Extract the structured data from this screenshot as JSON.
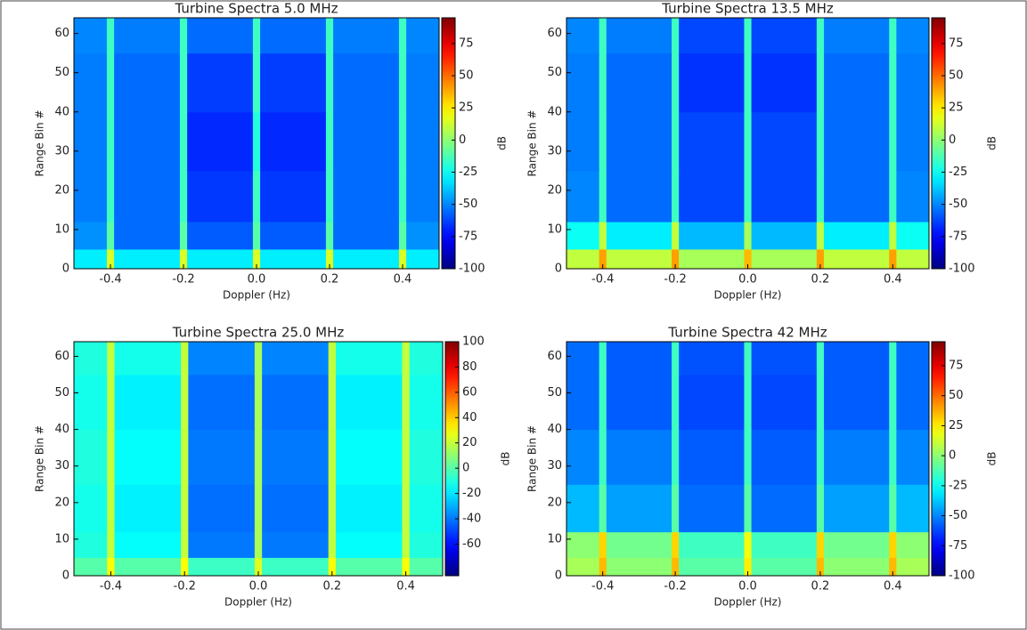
{
  "chart_data": [
    {
      "type": "heatmap",
      "title": "Turbine Spectra 5.0 MHz",
      "xlabel": "Doppler (Hz)",
      "ylabel": "Range Bin #",
      "colorbar_label": "dB",
      "colormap": "jet",
      "xlim": [
        -0.5,
        0.5
      ],
      "ylim": [
        0,
        64
      ],
      "xticks": [
        -0.4,
        -0.2,
        {
          "value": 0,
          "label": "0.0"
        },
        0.2,
        0.4
      ],
      "yticks": [
        0,
        10,
        20,
        30,
        40,
        50,
        60
      ],
      "zlim": [
        -100,
        95
      ],
      "zticks": [
        -100,
        -75,
        -50,
        -25,
        0,
        25,
        50,
        75
      ],
      "x_edges": [
        -0.5,
        -0.41,
        -0.39,
        -0.21,
        -0.19,
        -0.01,
        0.01,
        0.19,
        0.21,
        0.39,
        0.41,
        0.5
      ],
      "y_edges": [
        0,
        5,
        12,
        25,
        40,
        55,
        64
      ],
      "z": [
        [
          -30,
          15,
          -30,
          15,
          -30,
          15,
          -30,
          15,
          -30,
          15,
          -30
        ],
        [
          -48,
          -10,
          -55,
          -10,
          -58,
          -10,
          -58,
          -10,
          -55,
          -10,
          -48
        ],
        [
          -52,
          -15,
          -55,
          -15,
          -65,
          -15,
          -65,
          -15,
          -55,
          -15,
          -52
        ],
        [
          -52,
          -15,
          -55,
          -15,
          -68,
          -20,
          -68,
          -15,
          -55,
          -15,
          -52
        ],
        [
          -52,
          -15,
          -55,
          -15,
          -64,
          -15,
          -64,
          -15,
          -55,
          -15,
          -52
        ],
        [
          -50,
          -15,
          -52,
          -15,
          -55,
          -15,
          -55,
          -15,
          -52,
          -15,
          -50
        ]
      ]
    },
    {
      "type": "heatmap",
      "title": "Turbine Spectra 13.5 MHz",
      "xlabel": "Doppler (Hz)",
      "ylabel": "Range Bin #",
      "colorbar_label": "dB",
      "colormap": "jet",
      "xlim": [
        -0.5,
        0.5
      ],
      "ylim": [
        0,
        64
      ],
      "xticks": [
        -0.4,
        -0.2,
        {
          "value": 0,
          "label": "0.0"
        },
        0.2,
        0.4
      ],
      "yticks": [
        0,
        10,
        20,
        30,
        40,
        50,
        60
      ],
      "zlim": [
        -100,
        95
      ],
      "zticks": [
        -100,
        -75,
        -50,
        -25,
        0,
        25,
        50,
        75
      ],
      "x_edges": [
        -0.5,
        -0.41,
        -0.39,
        -0.21,
        -0.19,
        -0.01,
        0.01,
        0.19,
        0.21,
        0.39,
        0.41,
        0.5
      ],
      "y_edges": [
        0,
        5,
        12,
        25,
        40,
        55,
        64
      ],
      "z": [
        [
          10,
          40,
          10,
          40,
          5,
          35,
          5,
          40,
          10,
          40,
          10
        ],
        [
          -25,
          10,
          -30,
          10,
          -40,
          5,
          -40,
          10,
          -30,
          10,
          -25
        ],
        [
          -50,
          -15,
          -55,
          -15,
          -62,
          -15,
          -62,
          -15,
          -55,
          -15,
          -50
        ],
        [
          -52,
          -15,
          -55,
          -15,
          -62,
          -15,
          -62,
          -15,
          -55,
          -15,
          -52
        ],
        [
          -52,
          -15,
          -55,
          -15,
          -66,
          -15,
          -66,
          -15,
          -55,
          -15,
          -52
        ],
        [
          -50,
          -15,
          -52,
          -15,
          -62,
          -15,
          -62,
          -15,
          -52,
          -15,
          -50
        ]
      ]
    },
    {
      "type": "heatmap",
      "title": "Turbine Spectra 25.0 MHz",
      "xlabel": "Doppler (Hz)",
      "ylabel": "Range Bin #",
      "colorbar_label": "dB",
      "colormap": "jet",
      "xlim": [
        -0.5,
        0.5
      ],
      "ylim": [
        0,
        64
      ],
      "xticks": [
        -0.4,
        -0.2,
        {
          "value": 0,
          "label": "0.0"
        },
        0.2,
        0.4
      ],
      "yticks": [
        0,
        10,
        20,
        30,
        40,
        50,
        60
      ],
      "zlim": [
        -85,
        100
      ],
      "zticks": [
        -60,
        -40,
        -20,
        0,
        20,
        40,
        60,
        80,
        100
      ],
      "x_edges": [
        -0.5,
        -0.41,
        -0.39,
        -0.21,
        -0.19,
        -0.01,
        0.01,
        0.19,
        0.21,
        0.39,
        0.41,
        0.5
      ],
      "y_edges": [
        0,
        5,
        12,
        25,
        40,
        55,
        64
      ],
      "z": [
        [
          0,
          30,
          0,
          30,
          -5,
          25,
          -5,
          30,
          0,
          30,
          0
        ],
        [
          -10,
          20,
          -15,
          20,
          -40,
          15,
          -40,
          20,
          -15,
          20,
          -10
        ],
        [
          -12,
          20,
          -18,
          20,
          -42,
          15,
          -42,
          20,
          -18,
          20,
          -12
        ],
        [
          -10,
          20,
          -15,
          20,
          -40,
          15,
          -40,
          20,
          -15,
          20,
          -10
        ],
        [
          -12,
          20,
          -18,
          20,
          -42,
          15,
          -42,
          20,
          -18,
          20,
          -12
        ],
        [
          -10,
          20,
          -12,
          20,
          -38,
          15,
          -38,
          20,
          -12,
          20,
          -10
        ]
      ]
    },
    {
      "type": "heatmap",
      "title": "Turbine Spectra 42 MHz",
      "xlabel": "Doppler (Hz)",
      "ylabel": "Range Bin #",
      "colorbar_label": "dB",
      "colormap": "jet",
      "xlim": [
        -0.5,
        0.5
      ],
      "ylim": [
        0,
        64
      ],
      "xticks": [
        -0.4,
        -0.2,
        {
          "value": 0,
          "label": "0.0"
        },
        0.2,
        0.4
      ],
      "yticks": [
        0,
        10,
        20,
        30,
        40,
        50,
        60
      ],
      "zlim": [
        -100,
        95
      ],
      "zticks": [
        -100,
        -75,
        -50,
        -25,
        0,
        25,
        50,
        75
      ],
      "x_edges": [
        -0.5,
        -0.41,
        -0.39,
        -0.21,
        -0.19,
        -0.01,
        0.01,
        0.19,
        0.21,
        0.39,
        0.41,
        0.5
      ],
      "y_edges": [
        0,
        5,
        12,
        25,
        40,
        55,
        64
      ],
      "z": [
        [
          5,
          35,
          0,
          35,
          -10,
          25,
          -10,
          35,
          0,
          35,
          5
        ],
        [
          0,
          30,
          -5,
          30,
          -15,
          20,
          -15,
          30,
          -5,
          30,
          0
        ],
        [
          -40,
          -10,
          -45,
          -10,
          -55,
          -10,
          -55,
          -10,
          -45,
          -10,
          -40
        ],
        [
          -50,
          -15,
          -52,
          -15,
          -58,
          -15,
          -58,
          -15,
          -52,
          -15,
          -50
        ],
        [
          -55,
          -15,
          -58,
          -15,
          -62,
          -15,
          -62,
          -15,
          -58,
          -15,
          -55
        ],
        [
          -55,
          -15,
          -58,
          -15,
          -60,
          -15,
          -60,
          -15,
          -58,
          -15,
          -55
        ]
      ]
    }
  ]
}
